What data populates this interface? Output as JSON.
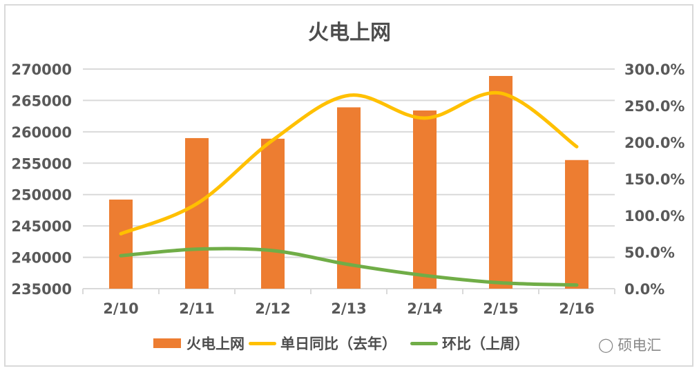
{
  "chart_data": {
    "type": "bar+line",
    "title": "火电上网",
    "categories": [
      "2/10",
      "2/11",
      "2/12",
      "2/13",
      "2/14",
      "2/15",
      "2/16"
    ],
    "series": [
      {
        "name": "火电上网",
        "type": "bar",
        "axis": "left",
        "color": "#ed7d31",
        "values": [
          249200,
          259000,
          258900,
          263900,
          263400,
          268900,
          255500
        ]
      },
      {
        "name": "单日同比（去年）",
        "type": "line",
        "smooth": true,
        "axis": "right",
        "color": "#ffc000",
        "values": [
          0.75,
          1.16,
          2.03,
          2.64,
          2.33,
          2.67,
          1.94
        ]
      },
      {
        "name": "环比（上周）",
        "type": "line",
        "smooth": true,
        "axis": "right",
        "color": "#70ad47",
        "values": [
          0.45,
          0.54,
          0.52,
          0.33,
          0.18,
          0.08,
          0.05
        ]
      }
    ],
    "left_axis": {
      "min": 235000,
      "max": 270000,
      "step": 5000,
      "ticks": [
        "270000",
        "265000",
        "260000",
        "255000",
        "250000",
        "245000",
        "240000",
        "235000"
      ]
    },
    "right_axis": {
      "min": 0,
      "max": 3,
      "step": 0.5,
      "ticks": [
        "300.0%",
        "250.0%",
        "200.0%",
        "150.0%",
        "100.0%",
        "50.0%",
        "0.0%"
      ]
    },
    "grid": true,
    "legend_position": "bottom"
  },
  "legend": {
    "bar": "火电上网",
    "line1": "单日同比（去年）",
    "line2": "环比（上周）"
  },
  "watermark": "硕电汇"
}
